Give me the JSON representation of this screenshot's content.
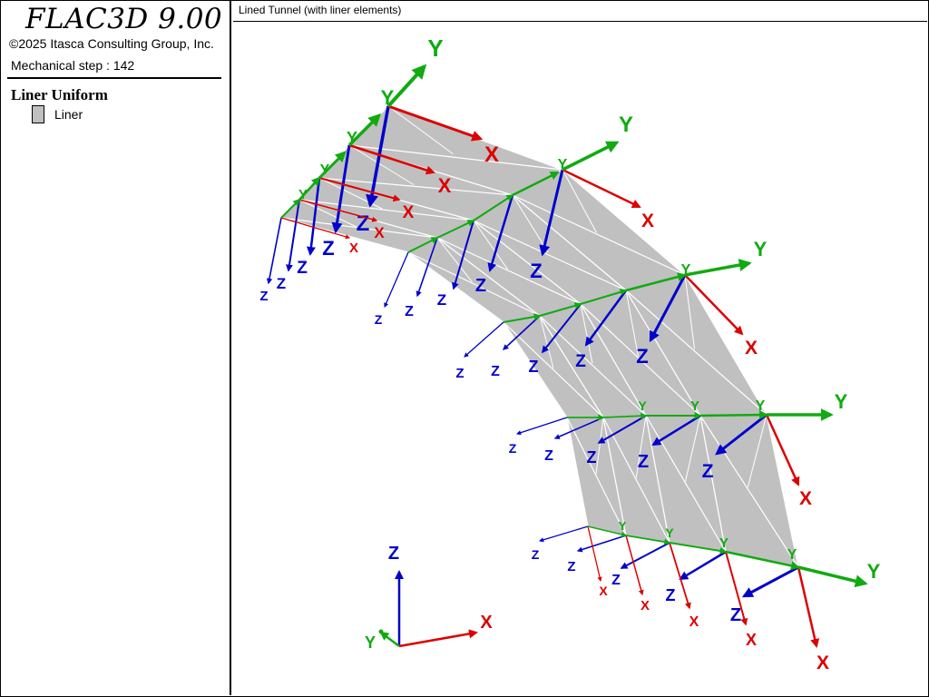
{
  "app": {
    "title": "FLAC3D 9.00",
    "copyright": "©2025 Itasca Consulting Group, Inc.",
    "step": "Mechanical step : 142"
  },
  "legend": {
    "heading": "Liner Uniform",
    "items": [
      {
        "label": "Liner",
        "color": "#c0c0c0"
      }
    ]
  },
  "plot": {
    "title": "Lined Tunnel (with liner elements)"
  },
  "axis_labels": {
    "x": "X",
    "y": "Y",
    "z": "Z"
  },
  "colors": {
    "x": "#dd0000",
    "y": "#11aa11",
    "z": "#0000cc",
    "liner": "#c0c0c0"
  }
}
